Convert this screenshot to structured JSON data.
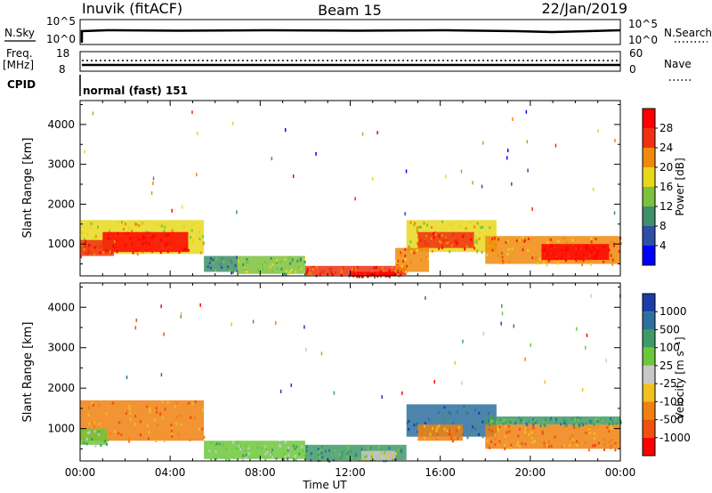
{
  "header": {
    "station": "Inuvik (fitACF)",
    "beam": "Beam 15",
    "date": "22/Jan/2019"
  },
  "nsky_panel": {
    "left_label": "N.Sky",
    "left_ticks": [
      "10^5",
      "10^0"
    ],
    "right_label": "N.Search",
    "right_ticks": [
      "10^5",
      "10^0"
    ]
  },
  "freq_panel": {
    "left_label": "Freq.",
    "left_unit": "[MHz]",
    "left_ticks": [
      "18",
      "8"
    ],
    "right_label": "Nave",
    "right_ticks": [
      "60",
      "0"
    ]
  },
  "cpid": {
    "label": "CPID",
    "text": "normal (fast) 151"
  },
  "x_axis": {
    "label": "Time UT",
    "ticks": [
      "00:00",
      "04:00",
      "08:00",
      "12:00",
      "16:00",
      "20:00",
      "00:00"
    ]
  },
  "chart_data": [
    {
      "type": "heatmap",
      "name": "power_panel",
      "ylabel": "Slant Range [km]",
      "yticks": [
        1000,
        2000,
        3000,
        4000
      ],
      "ylim": [
        200,
        4600
      ],
      "xlim": [
        0,
        24
      ],
      "colorbar_label": "Power [dB]",
      "colorbar_ticks": [
        "4",
        "8",
        "12",
        "16",
        "20",
        "24",
        "28"
      ],
      "colorbar_colors": [
        "#0000ff",
        "#2d4fa8",
        "#3f8f6a",
        "#7cc23c",
        "#e8d81c",
        "#f08a0c",
        "#f03010",
        "#ff0000"
      ],
      "regions": [
        {
          "t0": 0.0,
          "t1": 5.5,
          "r0": 750,
          "r1": 1600,
          "level": 4
        },
        {
          "t0": 1.0,
          "t1": 4.8,
          "r0": 800,
          "r1": 1300,
          "level": 7
        },
        {
          "t0": 0.0,
          "t1": 1.5,
          "r0": 700,
          "r1": 1100,
          "level": 6
        },
        {
          "t0": 5.5,
          "t1": 7.0,
          "r0": 300,
          "r1": 700,
          "level": 2
        },
        {
          "t0": 7.0,
          "t1": 10.0,
          "r0": 250,
          "r1": 700,
          "level": 3
        },
        {
          "t0": 10.0,
          "t1": 14.5,
          "r0": 220,
          "r1": 450,
          "level": 6
        },
        {
          "t0": 12.0,
          "t1": 14.0,
          "r0": 200,
          "r1": 300,
          "level": 7
        },
        {
          "t0": 14.5,
          "t1": 18.5,
          "r0": 800,
          "r1": 1600,
          "level": 4
        },
        {
          "t0": 15.0,
          "t1": 17.5,
          "r0": 900,
          "r1": 1300,
          "level": 6
        },
        {
          "t0": 18.0,
          "t1": 24.0,
          "r0": 500,
          "r1": 1200,
          "level": 5
        },
        {
          "t0": 20.5,
          "t1": 23.5,
          "r0": 600,
          "r1": 1000,
          "level": 7
        },
        {
          "t0": 14.0,
          "t1": 15.5,
          "r0": 300,
          "r1": 900,
          "level": 5
        }
      ]
    },
    {
      "type": "heatmap",
      "name": "velocity_panel",
      "ylabel": "Slant Range [km]",
      "yticks": [
        1000,
        2000,
        3000,
        4000
      ],
      "ylim": [
        200,
        4600
      ],
      "xlim": [
        0,
        24
      ],
      "colorbar_label": "Velocity [m s⁻¹]",
      "colorbar_ticks": [
        "1000",
        "500",
        "100",
        "25",
        "-25",
        "-100",
        "-500",
        "-1000"
      ],
      "colorbar_colors": [
        "#1c3ca8",
        "#2e6fa0",
        "#3f9a6a",
        "#6cc83a",
        "#c8c8c8",
        "#f0c020",
        "#f08010",
        "#f05010",
        "#ff0000"
      ],
      "regions": [
        {
          "t0": 0.0,
          "t1": 5.5,
          "r0": 700,
          "r1": 1700,
          "level": 6
        },
        {
          "t0": 0.0,
          "t1": 1.2,
          "r0": 600,
          "r1": 1000,
          "level": 3
        },
        {
          "t0": 5.5,
          "t1": 10.0,
          "r0": 250,
          "r1": 700,
          "level": 3
        },
        {
          "t0": 10.0,
          "t1": 14.5,
          "r0": 220,
          "r1": 600,
          "level": 2
        },
        {
          "t0": 12.5,
          "t1": 14.0,
          "r0": 220,
          "r1": 450,
          "level": 4
        },
        {
          "t0": 14.5,
          "t1": 18.5,
          "r0": 800,
          "r1": 1600,
          "level": 1
        },
        {
          "t0": 15.0,
          "t1": 17.0,
          "r0": 700,
          "r1": 1100,
          "level": 6
        },
        {
          "t0": 18.0,
          "t1": 24.0,
          "r0": 500,
          "r1": 1100,
          "level": 6
        },
        {
          "t0": 18.0,
          "t1": 24.0,
          "r0": 1100,
          "r1": 1300,
          "level": 2
        }
      ]
    }
  ]
}
